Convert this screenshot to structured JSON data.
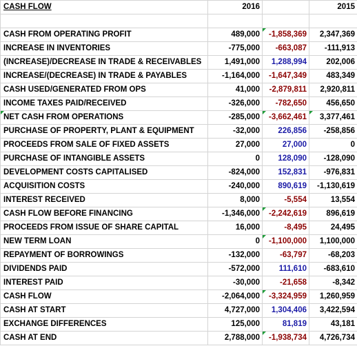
{
  "header": {
    "title": "CASH FLOW",
    "col_2016": "2016",
    "col_change": "",
    "col_2015": "2015"
  },
  "rows": [
    {
      "label": "CASH FROM OPERATING PROFIT",
      "v2016": "489,000",
      "change": "-1,858,369",
      "change_sign": "neg",
      "v2015": "2,347,369",
      "flag_change": true,
      "flag_2015": false
    },
    {
      "label": "INCREASE IN INVENTORIES",
      "v2016": "-775,000",
      "change": "-663,087",
      "change_sign": "neg",
      "v2015": "-111,913",
      "flag_change": false,
      "flag_2015": false
    },
    {
      "label": "(INCREASE)/DECREASE IN TRADE & RECEIVABLES",
      "v2016": "1,491,000",
      "change": "1,288,994",
      "change_sign": "pos",
      "v2015": "202,006",
      "flag_change": false,
      "flag_2015": false
    },
    {
      "label": "INCREASE/(DECREASE) IN TRADE & PAYABLES",
      "v2016": "-1,164,000",
      "change": "-1,647,349",
      "change_sign": "neg",
      "v2015": "483,349",
      "flag_change": false,
      "flag_2015": false
    },
    {
      "label": "CASH USED/GENERATED FROM OPS",
      "v2016": "41,000",
      "change": "-2,879,811",
      "change_sign": "neg",
      "v2015": "2,920,811",
      "flag_change": false,
      "flag_2015": false
    },
    {
      "label": "INCOME TAXES PAID/RECEIVED",
      "v2016": "-326,000",
      "change": "-782,650",
      "change_sign": "neg",
      "v2015": "456,650",
      "flag_change": false,
      "flag_2015": false
    },
    {
      "label": "NET CASH FROM OPERATIONS",
      "v2016": "-285,000",
      "change": "-3,662,461",
      "change_sign": "neg",
      "v2015": "3,377,461",
      "flag_change": true,
      "flag_2015": true,
      "flag_label": true
    },
    {
      "label": "PURCHASE OF PROPERTY, PLANT & EQUIPMENT",
      "v2016": "-32,000",
      "change": "226,856",
      "change_sign": "pos",
      "v2015": "-258,856",
      "flag_change": false,
      "flag_2015": false
    },
    {
      "label": "PROCEEDS FROM SALE OF FIXED ASSETS",
      "v2016": "27,000",
      "change": "27,000",
      "change_sign": "pos",
      "v2015": "0",
      "flag_change": false,
      "flag_2015": false
    },
    {
      "label": "PURCHASE OF INTANGIBLE ASSETS",
      "v2016": "0",
      "change": "128,090",
      "change_sign": "pos",
      "v2015": "-128,090",
      "flag_change": false,
      "flag_2015": false
    },
    {
      "label": "DEVELOPMENT COSTS CAPITALISED",
      "v2016": "-824,000",
      "change": "152,831",
      "change_sign": "pos",
      "v2015": "-976,831",
      "flag_change": false,
      "flag_2015": false
    },
    {
      "label": "ACQUISITION COSTS",
      "v2016": "-240,000",
      "change": "890,619",
      "change_sign": "pos",
      "v2015": "-1,130,619",
      "flag_change": false,
      "flag_2015": false
    },
    {
      "label": "INTEREST RECEIVED",
      "v2016": "8,000",
      "change": "-5,554",
      "change_sign": "neg",
      "v2015": "13,554",
      "flag_change": false,
      "flag_2015": false
    },
    {
      "label": "CASH FLOW BEFORE FINANCING",
      "v2016": "-1,346,000",
      "change": "-2,242,619",
      "change_sign": "neg",
      "v2015": "896,619",
      "flag_change": true,
      "flag_2015": false
    },
    {
      "label": "PROCEEDS FROM ISSUE OF SHARE CAPITAL",
      "v2016": "16,000",
      "change": "-8,495",
      "change_sign": "neg",
      "v2015": "24,495",
      "flag_change": false,
      "flag_2015": false
    },
    {
      "label": "NEW TERM LOAN",
      "v2016": "0",
      "change": "-1,100,000",
      "change_sign": "neg",
      "v2015": "1,100,000",
      "flag_change": true,
      "flag_2015": false
    },
    {
      "label": "REPAYMENT OF BORROWINGS",
      "v2016": "-132,000",
      "change": "-63,797",
      "change_sign": "neg",
      "v2015": "-68,203",
      "flag_change": false,
      "flag_2015": false
    },
    {
      "label": "DIVIDENDS PAID",
      "v2016": "-572,000",
      "change": "111,610",
      "change_sign": "pos",
      "v2015": "-683,610",
      "flag_change": false,
      "flag_2015": false
    },
    {
      "label": "INTEREST PAID",
      "v2016": "-30,000",
      "change": "-21,658",
      "change_sign": "neg",
      "v2015": "-8,342",
      "flag_change": false,
      "flag_2015": false
    },
    {
      "label": "CASH FLOW",
      "v2016": "-2,064,000",
      "change": "-3,324,959",
      "change_sign": "neg",
      "v2015": "1,260,959",
      "flag_change": true,
      "flag_2015": false
    },
    {
      "label": "CASH AT START",
      "v2016": "4,727,000",
      "change": "1,304,406",
      "change_sign": "pos",
      "v2015": "3,422,594",
      "flag_change": false,
      "flag_2015": false
    },
    {
      "label": "EXCHANGE DIFFERENCES",
      "v2016": "125,000",
      "change": "81,819",
      "change_sign": "pos",
      "v2015": "43,181",
      "flag_change": false,
      "flag_2015": false
    },
    {
      "label": "CASH AT END",
      "v2016": "2,788,000",
      "change": "-1,938,734",
      "change_sign": "neg",
      "v2015": "4,726,734",
      "flag_change": true,
      "flag_2015": false
    }
  ]
}
